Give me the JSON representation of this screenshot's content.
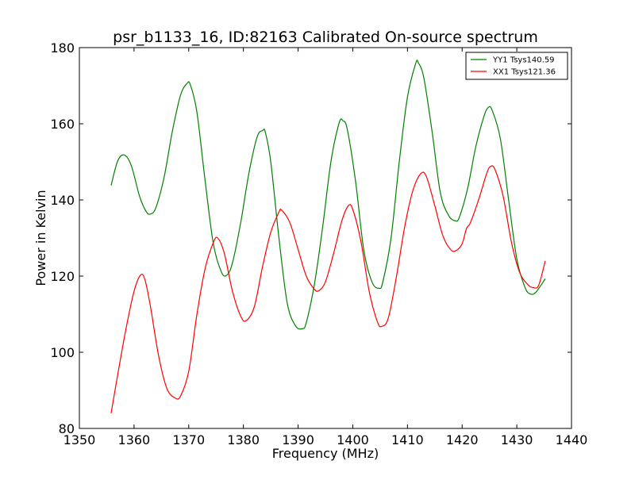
{
  "chart_data": {
    "type": "line",
    "title": "psr_b1133_16, ID:82163 Calibrated On-source spectrum",
    "xlabel": "Frequency (MHz)",
    "ylabel": "Power in Kelvin",
    "xlim": [
      1350,
      1440
    ],
    "ylim": [
      80,
      180
    ],
    "xticks": [
      "1350",
      "1360",
      "1370",
      "1380",
      "1390",
      "1400",
      "1410",
      "1420",
      "1430",
      "1440"
    ],
    "yticks": [
      "80",
      "100",
      "120",
      "140",
      "160",
      "180"
    ],
    "grid": false,
    "legend_position": "top-right",
    "series": [
      {
        "name": "YY1 Tsys140.59",
        "color": "#008000",
        "x": [
          1355.8,
          1357.0,
          1358.2,
          1359.5,
          1361.0,
          1362.2,
          1363.0,
          1364.0,
          1365.5,
          1367.0,
          1368.5,
          1369.7,
          1370.3,
          1371.5,
          1373.0,
          1374.5,
          1376.0,
          1377.0,
          1378.0,
          1379.5,
          1381.0,
          1382.5,
          1383.5,
          1384.0,
          1385.0,
          1386.5,
          1388.0,
          1389.5,
          1390.8,
          1391.5,
          1393.0,
          1394.5,
          1396.0,
          1397.5,
          1398.2,
          1399.0,
          1400.5,
          1402.0,
          1403.5,
          1404.8,
          1405.5,
          1407.0,
          1408.5,
          1410.0,
          1411.5,
          1412.0,
          1413.0,
          1414.5,
          1416.0,
          1417.5,
          1418.8,
          1419.5,
          1421.0,
          1422.5,
          1424.0,
          1424.8,
          1425.5,
          1427.0,
          1428.5,
          1430.0,
          1431.5,
          1432.5,
          1433.5,
          1435.2
        ],
        "values": [
          143.8,
          150.2,
          151.8,
          149.0,
          141.0,
          137.0,
          136.3,
          138.0,
          146.0,
          158.0,
          167.5,
          170.6,
          170.2,
          163.0,
          145.0,
          128.5,
          121.0,
          120.3,
          123.5,
          134.0,
          147.0,
          156.5,
          158.2,
          157.8,
          150.0,
          130.0,
          113.0,
          107.0,
          106.2,
          107.8,
          118.0,
          133.0,
          150.0,
          160.2,
          160.8,
          158.5,
          145.0,
          127.0,
          118.5,
          116.8,
          118.5,
          130.0,
          150.0,
          167.0,
          175.8,
          176.0,
          172.0,
          158.0,
          142.0,
          136.0,
          134.5,
          135.5,
          143.0,
          154.0,
          162.0,
          164.3,
          163.5,
          156.0,
          140.0,
          124.5,
          117.0,
          115.3,
          115.8,
          119.3
        ]
      },
      {
        "name": "XX1 Tsys121.36",
        "color": "#ff0000",
        "x": [
          1355.8,
          1357.0,
          1358.5,
          1360.0,
          1361.2,
          1362.0,
          1363.0,
          1364.5,
          1366.0,
          1367.5,
          1368.5,
          1370.0,
          1371.5,
          1373.0,
          1374.5,
          1375.3,
          1376.5,
          1378.0,
          1379.5,
          1380.5,
          1382.0,
          1383.5,
          1385.0,
          1386.5,
          1387.0,
          1388.5,
          1390.0,
          1391.5,
          1393.0,
          1393.8,
          1395.0,
          1396.5,
          1398.0,
          1399.2,
          1400.0,
          1401.5,
          1403.0,
          1404.5,
          1405.3,
          1406.5,
          1408.0,
          1409.5,
          1411.0,
          1412.5,
          1413.5,
          1415.0,
          1416.5,
          1418.0,
          1419.0,
          1420.0,
          1420.8,
          1421.5,
          1423.0,
          1424.5,
          1425.2,
          1426.0,
          1427.5,
          1429.0,
          1430.5,
          1432.0,
          1433.0,
          1434.0,
          1435.2
        ],
        "values": [
          84.0,
          94.0,
          106.0,
          116.0,
          120.3,
          119.0,
          112.0,
          99.0,
          90.5,
          88.0,
          88.5,
          95.0,
          110.0,
          122.0,
          128.8,
          130.0,
          126.0,
          116.0,
          109.5,
          108.3,
          112.0,
          122.5,
          131.5,
          136.8,
          137.3,
          134.0,
          127.0,
          120.0,
          116.5,
          116.2,
          118.5,
          126.0,
          134.5,
          138.5,
          137.5,
          129.0,
          116.0,
          108.0,
          106.8,
          109.0,
          120.0,
          133.0,
          142.5,
          147.0,
          146.0,
          138.5,
          130.5,
          126.8,
          126.8,
          128.5,
          132.5,
          134.0,
          140.0,
          147.0,
          148.8,
          148.0,
          141.0,
          129.0,
          121.0,
          117.8,
          117.0,
          117.6,
          124.0
        ]
      }
    ]
  }
}
